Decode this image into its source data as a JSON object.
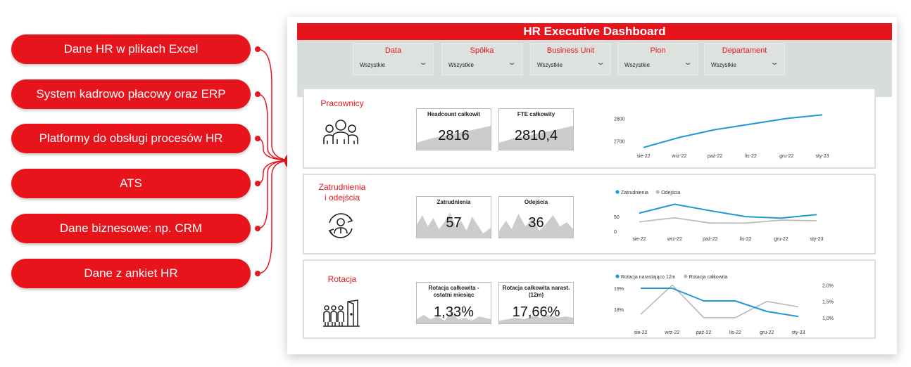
{
  "sources": [
    {
      "label": "Dane HR w plikach Excel"
    },
    {
      "label": "System kadrowo płacowy oraz ERP"
    },
    {
      "label": "Platformy do obsługi procesów HR"
    },
    {
      "label": "ATS"
    },
    {
      "label": "Dane biznesowe: np. CRM"
    },
    {
      "label": "Dane z ankiet HR"
    }
  ],
  "colors": {
    "accent": "#e8141c",
    "line_primary": "#1a9ad6",
    "line_secondary": "#b8b8b8",
    "filter_bg": "#d7ddd8"
  },
  "dashboard": {
    "title": "HR Executive Dashboard",
    "filters": [
      {
        "label": "Data",
        "value": "Wszystkie"
      },
      {
        "label": "Spółka",
        "value": "Wszystkie"
      },
      {
        "label": "Business Unit",
        "value": "Wszystkie"
      },
      {
        "label": "Pion",
        "value": "Wszystkie"
      },
      {
        "label": "Departament",
        "value": "Wszystkie"
      }
    ],
    "sections": {
      "pracownicy": {
        "title": "Pracownicy",
        "icon": "people-group-icon",
        "kpis": [
          {
            "label": "Headcount całkowit",
            "value": "2816"
          },
          {
            "label": "FTE całkowity",
            "value": "2810,4"
          }
        ]
      },
      "zatrudnienia": {
        "title_line1": "Zatrudnienia",
        "title_line2": "i odejścia",
        "icon": "employee-cycle-icon",
        "kpis": [
          {
            "label": "Zatrudnienia",
            "value": "57"
          },
          {
            "label": "Odejścia",
            "value": "36"
          }
        ]
      },
      "rotacja": {
        "title": "Rotacja",
        "icon": "people-exit-door-icon",
        "kpis": [
          {
            "label_line1": "Rotacja całkowita -",
            "label_line2": "ostatni miesiąc",
            "value": "1,33%"
          },
          {
            "label_line1": "Rotacja całkowita narast.",
            "label_line2": "(12m)",
            "value": "17,66%"
          }
        ]
      }
    }
  },
  "chart_data": [
    {
      "type": "line",
      "categories": [
        "sie-22",
        "wrz-22",
        "paź-22",
        "lis-22",
        "gru-22",
        "sty-23"
      ],
      "series": [
        {
          "values": [
            2670,
            2715,
            2750,
            2775,
            2800,
            2816
          ]
        }
      ],
      "ytick_labels": [
        "2800",
        "2700"
      ],
      "ylim": [
        2660,
        2830
      ],
      "legend": "none"
    },
    {
      "type": "line",
      "categories": [
        "sie-22",
        "wrz-22",
        "paź-22",
        "lis-22",
        "gru-22",
        "sty-23"
      ],
      "series": [
        {
          "name": "Zatrudnienia",
          "values": [
            62,
            92,
            70,
            50,
            45,
            57
          ]
        },
        {
          "name": "Odejścia",
          "values": [
            32,
            46,
            28,
            28,
            38,
            36
          ]
        }
      ],
      "ytick_labels": [
        "50",
        "0"
      ],
      "ylim": [
        0,
        110
      ],
      "legend": "top-left"
    },
    {
      "type": "line",
      "categories": [
        "sie-22",
        "wrz-22",
        "paź-22",
        "lis-22",
        "gru-22",
        "sty-23"
      ],
      "series": [
        {
          "name": "Rotacja narastająco 12m",
          "values": [
            19.0,
            19.0,
            18.4,
            18.4,
            17.9,
            17.66
          ]
        },
        {
          "name": "Rotacja całkowita",
          "values": [
            1.1,
            2.0,
            1.0,
            1.0,
            1.5,
            1.33
          ]
        }
      ],
      "left_ytick_labels": [
        "19%",
        "18%"
      ],
      "right_ytick_labels": [
        "2,0%",
        "1,5%",
        "1,0%"
      ],
      "ylim_left": [
        17.3,
        19.3
      ],
      "ylim_right": [
        0.8,
        2.1
      ],
      "legend": "top-left"
    }
  ]
}
